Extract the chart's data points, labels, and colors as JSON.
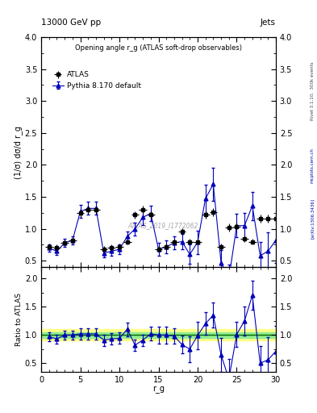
{
  "title_top": "13000 GeV pp",
  "title_right": "Jets",
  "plot_title": "Opening angle r_g (ATLAS soft-drop observables)",
  "ylabel_main": "(1/σ) dσ/d r_g",
  "ylabel_ratio": "Ratio to ATLAS",
  "xlabel": "r_g",
  "watermark": "ATLAS_2019_I1772062",
  "right_label_top": "Rivet 3.1.10,  300k events",
  "arxiv_label": "[arXiv:1306.3436]",
  "mcplots_label": "mcplots.cern.ch",
  "atlas_x": [
    1,
    2,
    3,
    4,
    5,
    6,
    7,
    8,
    9,
    10,
    11,
    12,
    13,
    14,
    15,
    16,
    17,
    18,
    19,
    20,
    21,
    22,
    23,
    24,
    25,
    26,
    27,
    28,
    29,
    30
  ],
  "atlas_y": [
    0.72,
    0.7,
    0.78,
    0.82,
    1.25,
    1.3,
    1.3,
    0.68,
    0.7,
    0.72,
    0.8,
    1.22,
    1.3,
    1.22,
    0.68,
    0.72,
    0.8,
    0.96,
    0.8,
    0.8,
    1.22,
    1.26,
    0.72,
    1.02,
    1.04,
    0.84,
    0.8,
    1.16,
    1.16,
    1.16
  ],
  "atlas_xerr": [
    0.5,
    0.5,
    0.5,
    0.5,
    0.5,
    0.5,
    0.5,
    0.5,
    0.5,
    0.5,
    0.5,
    0.5,
    0.5,
    0.5,
    0.5,
    0.5,
    0.5,
    0.5,
    0.5,
    0.5,
    0.5,
    0.5,
    0.5,
    0.5,
    0.5,
    0.5,
    0.5,
    0.5,
    0.5,
    0.5
  ],
  "atlas_yerr": [
    0.05,
    0.05,
    0.05,
    0.05,
    0.06,
    0.06,
    0.06,
    0.05,
    0.05,
    0.05,
    0.05,
    0.06,
    0.06,
    0.06,
    0.05,
    0.05,
    0.05,
    0.05,
    0.05,
    0.05,
    0.06,
    0.06,
    0.05,
    0.06,
    0.06,
    0.05,
    0.05,
    0.06,
    0.06,
    0.08
  ],
  "pythia_x": [
    1,
    2,
    3,
    4,
    5,
    6,
    7,
    8,
    9,
    10,
    11,
    12,
    13,
    14,
    15,
    16,
    17,
    18,
    19,
    20,
    21,
    22,
    23,
    24,
    25,
    26,
    27,
    28,
    29,
    30
  ],
  "pythia_y": [
    0.7,
    0.65,
    0.78,
    0.82,
    1.27,
    1.32,
    1.32,
    0.62,
    0.65,
    0.68,
    0.88,
    1.0,
    1.18,
    1.24,
    0.68,
    0.72,
    0.78,
    0.8,
    0.6,
    0.79,
    1.47,
    1.7,
    0.47,
    0.22,
    1.05,
    1.05,
    1.36,
    0.58,
    0.65,
    0.82
  ],
  "pythia_yerr": [
    0.06,
    0.06,
    0.06,
    0.06,
    0.1,
    0.1,
    0.1,
    0.07,
    0.07,
    0.07,
    0.08,
    0.1,
    0.12,
    0.12,
    0.1,
    0.1,
    0.1,
    0.12,
    0.15,
    0.18,
    0.22,
    0.26,
    0.2,
    0.22,
    0.18,
    0.2,
    0.22,
    0.22,
    0.3,
    0.35
  ],
  "ratio_x": [
    1,
    2,
    3,
    4,
    5,
    6,
    7,
    8,
    9,
    10,
    11,
    12,
    13,
    14,
    15,
    16,
    17,
    18,
    19,
    20,
    21,
    22,
    23,
    24,
    25,
    26,
    27,
    28,
    29,
    30
  ],
  "ratio_y": [
    0.97,
    0.93,
    1.0,
    1.0,
    1.02,
    1.02,
    1.02,
    0.91,
    0.93,
    0.94,
    1.1,
    0.82,
    0.91,
    1.02,
    1.0,
    1.0,
    0.98,
    0.83,
    0.75,
    0.99,
    1.2,
    1.35,
    0.65,
    0.22,
    1.01,
    1.25,
    1.7,
    0.5,
    0.56,
    0.71
  ],
  "ratio_yerr": [
    0.08,
    0.08,
    0.08,
    0.08,
    0.1,
    0.1,
    0.1,
    0.1,
    0.1,
    0.1,
    0.12,
    0.1,
    0.1,
    0.12,
    0.15,
    0.15,
    0.14,
    0.16,
    0.23,
    0.24,
    0.2,
    0.22,
    0.3,
    0.35,
    0.22,
    0.26,
    0.26,
    0.3,
    0.4,
    0.45
  ],
  "atlas_color": "#000000",
  "pythia_color": "#0000bb",
  "ratio_line_color": "#006600",
  "band_green_color": "#90ee90",
  "band_yellow_color": "#ffff80",
  "main_ylim": [
    0.4,
    4.0
  ],
  "ratio_ylim": [
    0.35,
    2.2
  ],
  "xlim": [
    0,
    30
  ],
  "main_yticks": [
    0.5,
    1.0,
    1.5,
    2.0,
    2.5,
    3.0,
    3.5,
    4.0
  ],
  "ratio_yticks": [
    0.5,
    1.0,
    1.5,
    2.0
  ],
  "xticks": [
    0,
    5,
    10,
    15,
    20,
    25,
    30
  ]
}
